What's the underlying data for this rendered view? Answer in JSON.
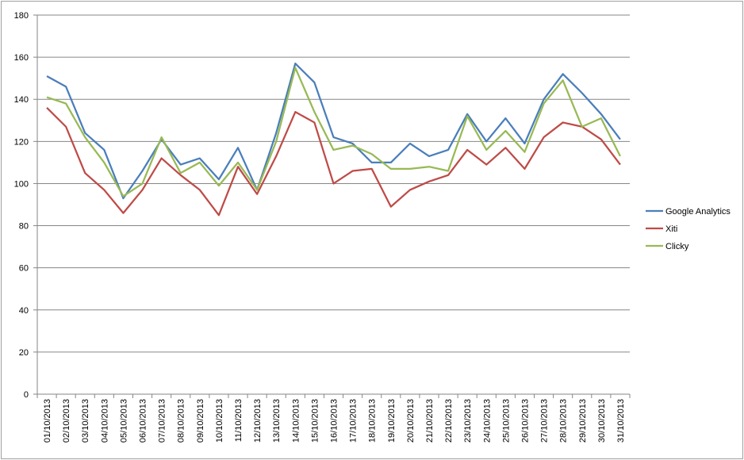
{
  "chart_data": {
    "type": "line",
    "categories": [
      "01/10/2013",
      "02/10/2013",
      "03/10/2013",
      "04/10/2013",
      "05/10/2013",
      "06/10/2013",
      "07/10/2013",
      "08/10/2013",
      "09/10/2013",
      "10/10/2013",
      "11/10/2013",
      "12/10/2013",
      "13/10/2013",
      "14/10/2013",
      "15/10/2013",
      "16/10/2013",
      "17/10/2013",
      "18/10/2013",
      "19/10/2013",
      "20/10/2013",
      "21/10/2013",
      "22/10/2013",
      "23/10/2013",
      "24/10/2013",
      "25/10/2013",
      "26/10/2013",
      "27/10/2013",
      "28/10/2013",
      "29/10/2013",
      "30/10/2013",
      "31/10/2013"
    ],
    "series": [
      {
        "name": "Google Analytics",
        "color": "#4a7ebb",
        "values": [
          151,
          146,
          124,
          116,
          93,
          106,
          121,
          109,
          112,
          102,
          117,
          97,
          124,
          157,
          148,
          122,
          119,
          110,
          110,
          119,
          113,
          116,
          133,
          120,
          131,
          119,
          140,
          152,
          143,
          133,
          121
        ]
      },
      {
        "name": "Xiti",
        "color": "#be4b48",
        "values": [
          136,
          127,
          105,
          97,
          86,
          97,
          112,
          104,
          97,
          85,
          108,
          95,
          113,
          134,
          129,
          100,
          106,
          107,
          89,
          97,
          101,
          104,
          116,
          109,
          117,
          107,
          122,
          129,
          127,
          121,
          109
        ]
      },
      {
        "name": "Clicky",
        "color": "#98b954",
        "values": [
          141,
          138,
          122,
          110,
          94,
          100,
          122,
          105,
          110,
          99,
          110,
          97,
          120,
          155,
          134,
          116,
          118,
          114,
          107,
          107,
          108,
          106,
          132,
          116,
          125,
          115,
          138,
          149,
          127,
          131,
          113
        ]
      }
    ],
    "ylim": [
      0,
      180
    ],
    "yticks": [
      0,
      20,
      40,
      60,
      80,
      100,
      120,
      140,
      160,
      180
    ],
    "grid": true,
    "legend": "right"
  }
}
